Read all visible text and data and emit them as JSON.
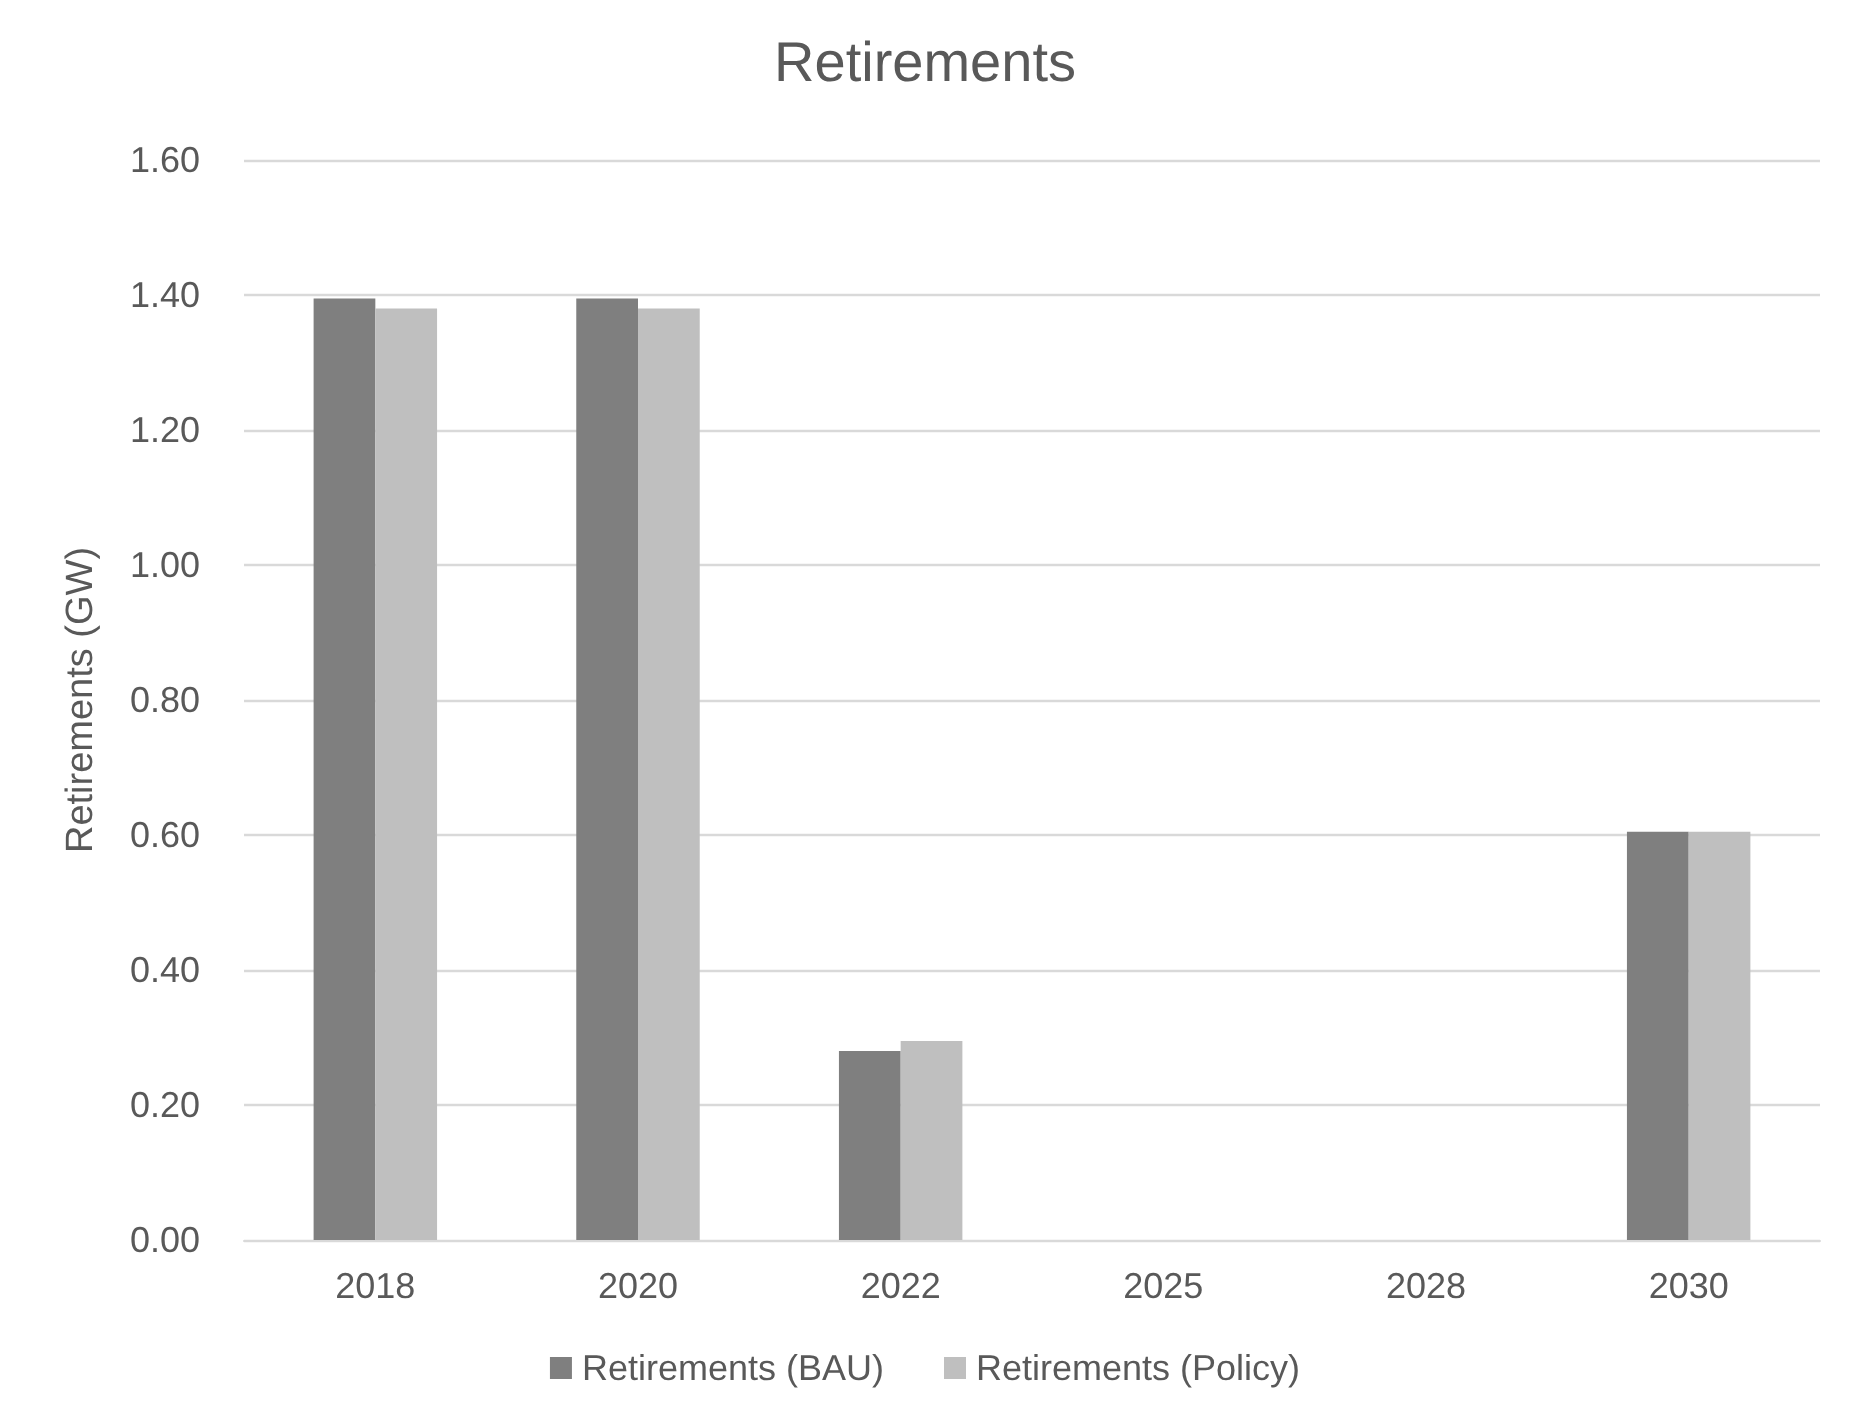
{
  "chart_data": {
    "type": "bar",
    "title": "Retirements",
    "ylabel": "Retirements (GW)",
    "categories": [
      "2018",
      "2020",
      "2022",
      "2025",
      "2028",
      "2030"
    ],
    "series": [
      {
        "name": "Retirements (BAU)",
        "color": "#7f7f7f",
        "values": [
          1.395,
          1.395,
          0.28,
          0,
          0,
          0.605
        ]
      },
      {
        "name": "Retirements (Policy)",
        "color": "#bfbfbf",
        "values": [
          1.38,
          1.38,
          0.295,
          0,
          0,
          0.605
        ]
      }
    ],
    "ylim": [
      0,
      1.6
    ],
    "yticks": [
      {
        "value": 0,
        "label": "0.00"
      },
      {
        "value": 0.2,
        "label": "0.20"
      },
      {
        "value": 0.4,
        "label": "0.40"
      },
      {
        "value": 0.6,
        "label": "0.60"
      },
      {
        "value": 0.8,
        "label": "0.80"
      },
      {
        "value": 1,
        "label": "1.00"
      },
      {
        "value": 1.2,
        "label": "1.20"
      },
      {
        "value": 1.4,
        "label": "1.40"
      },
      {
        "value": 1.6,
        "label": "1.60"
      }
    ],
    "grid": "y",
    "legend": "bottom"
  }
}
